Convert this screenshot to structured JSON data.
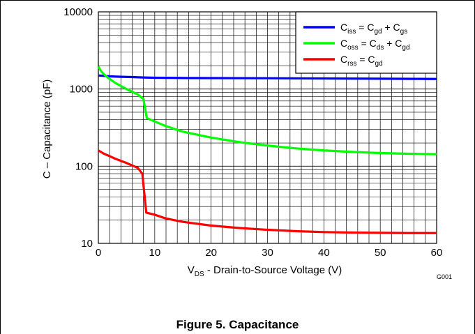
{
  "figure_caption": "Figure 5. Capacitance",
  "graph_id": "G001",
  "chart_data": {
    "type": "line",
    "title": "",
    "xlabel": {
      "main": "V",
      "sub": "DS",
      "rest": " - Drain-to-Source Voltage (V)"
    },
    "ylabel": "C – Capacitance  (pF)",
    "xlim": [
      0,
      60
    ],
    "ylim": [
      10,
      10000
    ],
    "yscale": "log",
    "grid": true,
    "legend_position": "top-right",
    "x_ticks": [
      "0",
      "10",
      "20",
      "30",
      "40",
      "50",
      "60"
    ],
    "y_ticks": [
      "10",
      "100",
      "1000",
      "10000"
    ],
    "series": [
      {
        "name": "Ciss = Cgd + Cgs",
        "legend_parts": [
          [
            "C",
            ""
          ],
          [
            "iss",
            "sub"
          ],
          [
            " = C",
            ""
          ],
          [
            "gd",
            "sub"
          ],
          [
            " + C",
            ""
          ],
          [
            "gs",
            "sub"
          ]
        ],
        "color": "#0000ff",
        "points": [
          [
            0,
            1500
          ],
          [
            1,
            1480
          ],
          [
            2,
            1460
          ],
          [
            4,
            1440
          ],
          [
            6,
            1430
          ],
          [
            8,
            1410
          ],
          [
            10,
            1400
          ],
          [
            15,
            1390
          ],
          [
            20,
            1385
          ],
          [
            30,
            1380
          ],
          [
            40,
            1370
          ],
          [
            50,
            1360
          ],
          [
            60,
            1350
          ]
        ]
      },
      {
        "name": "Coss = Cds + Cgd",
        "legend_parts": [
          [
            "C",
            ""
          ],
          [
            "oss",
            "sub"
          ],
          [
            " = C",
            ""
          ],
          [
            "ds",
            "sub"
          ],
          [
            " + C",
            ""
          ],
          [
            "gd",
            "sub"
          ]
        ],
        "color": "#00ff00",
        "points": [
          [
            0,
            1950
          ],
          [
            0.5,
            1700
          ],
          [
            1,
            1550
          ],
          [
            2,
            1350
          ],
          [
            3,
            1200
          ],
          [
            5,
            1000
          ],
          [
            7,
            850
          ],
          [
            8,
            740
          ],
          [
            8.6,
            420
          ],
          [
            10,
            380
          ],
          [
            12,
            330
          ],
          [
            15,
            280
          ],
          [
            20,
            235
          ],
          [
            25,
            205
          ],
          [
            30,
            185
          ],
          [
            35,
            170
          ],
          [
            40,
            160
          ],
          [
            45,
            153
          ],
          [
            50,
            148
          ],
          [
            55,
            145
          ],
          [
            60,
            143
          ]
        ]
      },
      {
        "name": "Crss = Cgd",
        "legend_parts": [
          [
            "C",
            ""
          ],
          [
            "rss",
            "sub"
          ],
          [
            " =  C",
            ""
          ],
          [
            "gd",
            "sub"
          ]
        ],
        "color": "#ff0000",
        "points": [
          [
            0,
            160
          ],
          [
            1,
            145
          ],
          [
            2,
            135
          ],
          [
            3,
            125
          ],
          [
            5,
            110
          ],
          [
            7,
            95
          ],
          [
            7.8,
            80
          ],
          [
            8.5,
            25
          ],
          [
            10,
            23.5
          ],
          [
            12,
            21
          ],
          [
            15,
            19
          ],
          [
            20,
            17
          ],
          [
            25,
            15.8
          ],
          [
            30,
            15
          ],
          [
            35,
            14.4
          ],
          [
            40,
            14
          ],
          [
            45,
            13.8
          ],
          [
            50,
            13.7
          ],
          [
            55,
            13.6
          ],
          [
            60,
            13.6
          ]
        ]
      }
    ]
  }
}
